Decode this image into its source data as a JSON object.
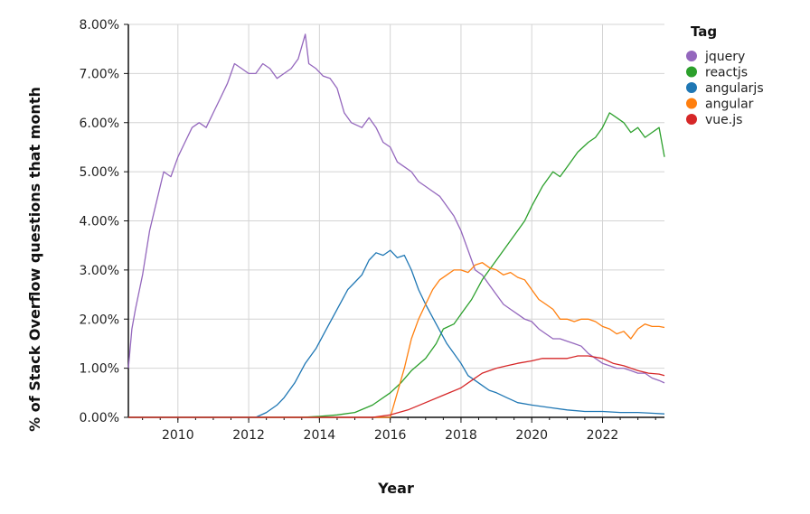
{
  "chart_data": {
    "type": "line",
    "xlabel": "Year",
    "ylabel": "% of Stack Overflow questions that month",
    "xlim": [
      2008.6,
      2023.75
    ],
    "ylim": [
      0,
      8
    ],
    "y_tick_labels": [
      "0.00%",
      "1.00%",
      "2.00%",
      "3.00%",
      "4.00%",
      "5.00%",
      "6.00%",
      "7.00%",
      "8.00%"
    ],
    "x_tick_labels": [
      "2010",
      "2012",
      "2014",
      "2016",
      "2018",
      "2020",
      "2022"
    ],
    "grid": true,
    "legend": {
      "title": "Tag",
      "placement": "right"
    },
    "series": [
      {
        "name": "jquery",
        "color": "#9467bd",
        "x": [
          2008.6,
          2008.7,
          2008.8,
          2009.0,
          2009.2,
          2009.4,
          2009.6,
          2009.8,
          2010.0,
          2010.2,
          2010.4,
          2010.6,
          2010.8,
          2011.0,
          2011.2,
          2011.4,
          2011.6,
          2011.8,
          2012.0,
          2012.2,
          2012.4,
          2012.6,
          2012.8,
          2013.0,
          2013.2,
          2013.4,
          2013.6,
          2013.7,
          2013.9,
          2014.1,
          2014.3,
          2014.5,
          2014.7,
          2014.9,
          2015.2,
          2015.4,
          2015.6,
          2015.8,
          2016.0,
          2016.2,
          2016.4,
          2016.6,
          2016.8,
          2017.0,
          2017.2,
          2017.4,
          2017.6,
          2017.8,
          2018.0,
          2018.2,
          2018.4,
          2018.6,
          2018.8,
          2019.0,
          2019.2,
          2019.4,
          2019.6,
          2019.8,
          2020.0,
          2020.2,
          2020.4,
          2020.6,
          2020.8,
          2021.0,
          2021.2,
          2021.4,
          2021.6,
          2021.8,
          2022.0,
          2022.2,
          2022.4,
          2022.6,
          2022.8,
          2023.0,
          2023.2,
          2023.4,
          2023.6,
          2023.75
        ],
        "y": [
          1.0,
          1.8,
          2.2,
          2.9,
          3.8,
          4.4,
          5.0,
          4.9,
          5.3,
          5.6,
          5.9,
          6.0,
          5.9,
          6.2,
          6.5,
          6.8,
          7.2,
          7.1,
          7.0,
          7.0,
          7.2,
          7.1,
          6.9,
          7.0,
          7.1,
          7.3,
          7.8,
          7.2,
          7.1,
          6.95,
          6.9,
          6.7,
          6.2,
          6.0,
          5.9,
          6.1,
          5.9,
          5.6,
          5.5,
          5.2,
          5.1,
          5.0,
          4.8,
          4.7,
          4.6,
          4.5,
          4.3,
          4.1,
          3.8,
          3.4,
          3.0,
          2.9,
          2.7,
          2.5,
          2.3,
          2.2,
          2.1,
          2.0,
          1.95,
          1.8,
          1.7,
          1.6,
          1.6,
          1.55,
          1.5,
          1.45,
          1.3,
          1.2,
          1.1,
          1.05,
          1.0,
          1.0,
          0.95,
          0.9,
          0.9,
          0.8,
          0.75,
          0.7
        ]
      },
      {
        "name": "reactjs",
        "color": "#2ca02c",
        "x": [
          2008.6,
          2012.5,
          2013.5,
          2014.0,
          2014.5,
          2015.0,
          2015.5,
          2016.0,
          2016.3,
          2016.6,
          2017.0,
          2017.3,
          2017.5,
          2017.8,
          2018.0,
          2018.3,
          2018.6,
          2018.8,
          2019.0,
          2019.3,
          2019.6,
          2019.8,
          2020.0,
          2020.3,
          2020.6,
          2020.8,
          2021.0,
          2021.3,
          2021.6,
          2021.8,
          2022.0,
          2022.2,
          2022.4,
          2022.6,
          2022.8,
          2023.0,
          2023.2,
          2023.4,
          2023.6,
          2023.75
        ],
        "y": [
          0,
          0,
          0,
          0.02,
          0.05,
          0.1,
          0.25,
          0.5,
          0.7,
          0.95,
          1.2,
          1.5,
          1.8,
          1.9,
          2.1,
          2.4,
          2.8,
          3.0,
          3.2,
          3.5,
          3.8,
          4.0,
          4.3,
          4.7,
          5.0,
          4.9,
          5.1,
          5.4,
          5.6,
          5.7,
          5.9,
          6.2,
          6.1,
          6.0,
          5.8,
          5.9,
          5.7,
          5.8,
          5.9,
          5.3
        ]
      },
      {
        "name": "angularjs",
        "color": "#1f77b4",
        "x": [
          2008.6,
          2012.2,
          2012.5,
          2012.8,
          2013.0,
          2013.3,
          2013.6,
          2013.9,
          2014.2,
          2014.5,
          2014.8,
          2015.0,
          2015.2,
          2015.4,
          2015.6,
          2015.8,
          2016.0,
          2016.2,
          2016.4,
          2016.6,
          2016.8,
          2017.0,
          2017.3,
          2017.6,
          2017.8,
          2018.0,
          2018.2,
          2018.4,
          2018.6,
          2018.8,
          2019.0,
          2019.3,
          2019.6,
          2020.0,
          2020.5,
          2021.0,
          2021.5,
          2022.0,
          2022.5,
          2023.0,
          2023.5,
          2023.75
        ],
        "y": [
          0,
          0,
          0.1,
          0.25,
          0.4,
          0.7,
          1.1,
          1.4,
          1.8,
          2.2,
          2.6,
          2.75,
          2.9,
          3.2,
          3.35,
          3.3,
          3.4,
          3.25,
          3.3,
          3.0,
          2.6,
          2.3,
          1.9,
          1.5,
          1.3,
          1.1,
          0.85,
          0.75,
          0.65,
          0.55,
          0.5,
          0.4,
          0.3,
          0.25,
          0.2,
          0.15,
          0.12,
          0.12,
          0.1,
          0.1,
          0.08,
          0.07
        ]
      },
      {
        "name": "angular",
        "color": "#ff7f0e",
        "x": [
          2008.6,
          2016.0,
          2016.2,
          2016.4,
          2016.6,
          2016.8,
          2017.0,
          2017.2,
          2017.4,
          2017.6,
          2017.8,
          2018.0,
          2018.2,
          2018.4,
          2018.6,
          2018.8,
          2019.0,
          2019.2,
          2019.4,
          2019.6,
          2019.8,
          2020.0,
          2020.2,
          2020.4,
          2020.6,
          2020.8,
          2021.0,
          2021.2,
          2021.4,
          2021.6,
          2021.8,
          2022.0,
          2022.2,
          2022.4,
          2022.6,
          2022.8,
          2023.0,
          2023.2,
          2023.4,
          2023.6,
          2023.75
        ],
        "y": [
          0,
          0,
          0.5,
          1.0,
          1.6,
          2.0,
          2.3,
          2.6,
          2.8,
          2.9,
          3.0,
          3.0,
          2.95,
          3.1,
          3.15,
          3.05,
          3.0,
          2.9,
          2.95,
          2.85,
          2.8,
          2.6,
          2.4,
          2.3,
          2.2,
          2.0,
          2.0,
          1.95,
          2.0,
          2.0,
          1.95,
          1.85,
          1.8,
          1.7,
          1.75,
          1.6,
          1.8,
          1.9,
          1.85,
          1.85,
          1.83
        ]
      },
      {
        "name": "vue.js",
        "color": "#d62728",
        "x": [
          2008.6,
          2015.5,
          2016.0,
          2016.5,
          2017.0,
          2017.5,
          2018.0,
          2018.3,
          2018.6,
          2019.0,
          2019.3,
          2019.6,
          2020.0,
          2020.3,
          2020.6,
          2021.0,
          2021.3,
          2021.6,
          2022.0,
          2022.3,
          2022.6,
          2023.0,
          2023.3,
          2023.6,
          2023.75
        ],
        "y": [
          0,
          0,
          0.05,
          0.15,
          0.3,
          0.45,
          0.6,
          0.75,
          0.9,
          1.0,
          1.05,
          1.1,
          1.15,
          1.2,
          1.2,
          1.2,
          1.25,
          1.25,
          1.2,
          1.1,
          1.05,
          0.95,
          0.9,
          0.88,
          0.85
        ]
      }
    ]
  }
}
